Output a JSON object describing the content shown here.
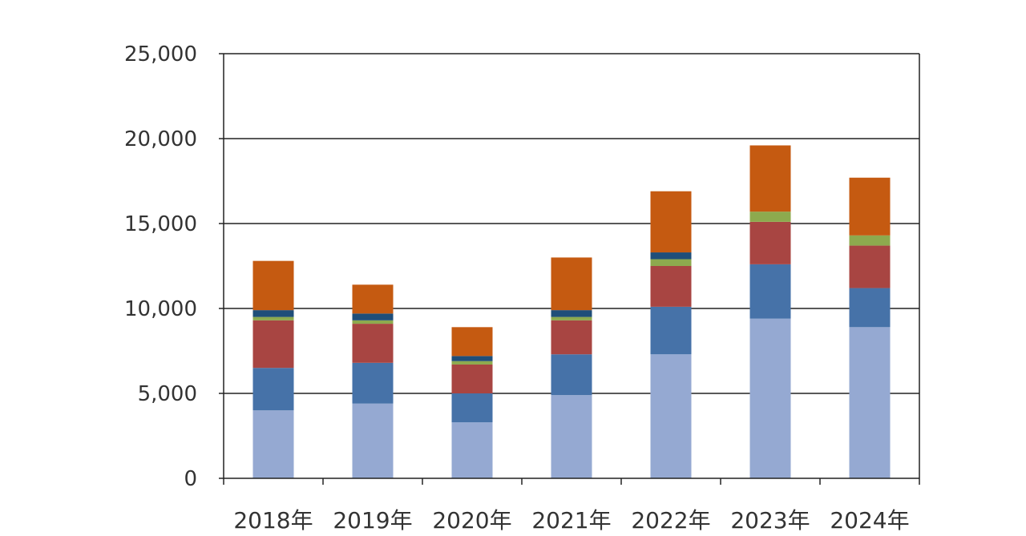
{
  "chart_data": {
    "type": "bar",
    "stacked": true,
    "categories": [
      "2018年",
      "2019年",
      "2020年",
      "2021年",
      "2022年",
      "2023年",
      "2024年"
    ],
    "series": [
      {
        "color": "#95A9D2",
        "values": [
          4000,
          4400,
          3300,
          4900,
          7300,
          9400,
          8900
        ]
      },
      {
        "color": "#4672A8",
        "values": [
          2500,
          2400,
          1700,
          2400,
          2800,
          3200,
          2300
        ]
      },
      {
        "color": "#A84542",
        "values": [
          2800,
          2300,
          1700,
          2000,
          2400,
          2500,
          2500
        ]
      },
      {
        "color": "#8DAA4E",
        "values": [
          200,
          200,
          200,
          200,
          400,
          600,
          600
        ]
      },
      {
        "color": "#1F4E79",
        "values": [
          400,
          400,
          300,
          400,
          400,
          0,
          0
        ]
      },
      {
        "color": "#C55A11",
        "values": [
          2900,
          1700,
          1700,
          3100,
          3600,
          3900,
          3400
        ]
      }
    ],
    "yTicks": [
      "0",
      "5,000",
      "10,000",
      "15,000",
      "20,000",
      "25,000"
    ],
    "ylim": [
      0,
      25000
    ],
    "grid": true,
    "title": "",
    "xlabel": "",
    "ylabel": ""
  }
}
